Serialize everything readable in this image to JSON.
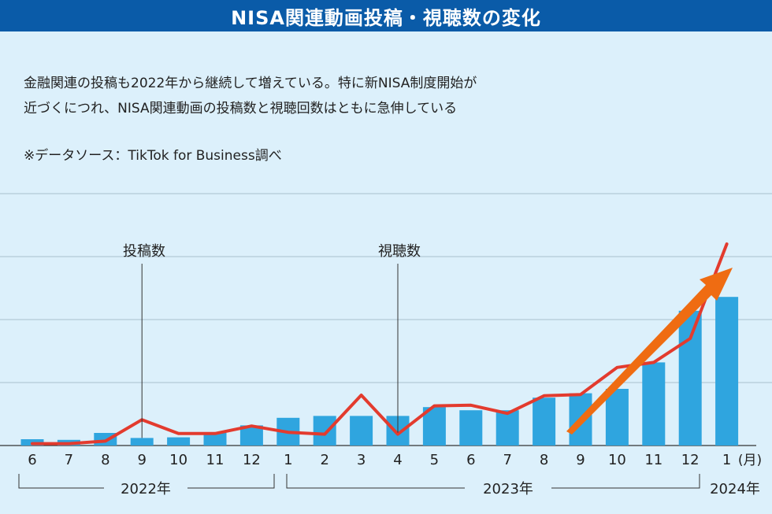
{
  "title": "NISA関連動画投稿・視聴数の変化",
  "description_lines": [
    "金融関連の投稿も2022年から継続して増えている。特に新NISA制度開始が",
    "近づくにつれ、NISA関連動画の投稿数と視聴回数はともに急伸している"
  ],
  "source": "※データソース：TikTok for Business調べ",
  "colors": {
    "background": "#dcf0fb",
    "title_bar": "#0a5ba8",
    "bars": "#2fa5df",
    "line": "#e33b2e",
    "arrow": "#ef6c12",
    "grid": "#a9bfcc"
  },
  "chart_data": {
    "type": "bar",
    "title": "NISA関連動画投稿・視聴数の変化",
    "x_labels": [
      "6",
      "7",
      "8",
      "9",
      "10",
      "11",
      "12",
      "1",
      "2",
      "3",
      "4",
      "5",
      "6",
      "7",
      "8",
      "9",
      "10",
      "11",
      "12",
      "1"
    ],
    "x_unit": "(月)",
    "year_groups": [
      {
        "label": "2022年",
        "start": 0,
        "end": 6
      },
      {
        "label": "2023年",
        "start": 7,
        "end": 18
      },
      {
        "label": "2024年",
        "start": 19,
        "end": 19
      }
    ],
    "ylim": [
      0,
      26
    ],
    "y_gridlines": [
      5,
      10,
      15,
      20
    ],
    "series": [
      {
        "name": "投稿数",
        "type": "bar",
        "values": [
          0.5,
          0.45,
          1.0,
          0.6,
          0.65,
          1.0,
          1.6,
          2.2,
          2.35,
          2.35,
          2.35,
          3.05,
          2.8,
          2.8,
          3.8,
          4.15,
          4.5,
          6.6,
          10.7,
          11.8
        ]
      },
      {
        "name": "視聴数",
        "type": "line",
        "values": [
          0.15,
          0.15,
          0.35,
          2.05,
          0.95,
          0.95,
          1.55,
          1.05,
          0.9,
          4.0,
          0.9,
          3.15,
          3.2,
          2.55,
          3.95,
          4.05,
          6.2,
          6.6,
          8.5,
          16.0
        ]
      }
    ],
    "annotations": [
      {
        "text": "投稿数",
        "series": "投稿数",
        "index": 3
      },
      {
        "text": "視聴数",
        "series": "視聴数",
        "index": 10
      }
    ],
    "grid": true
  }
}
